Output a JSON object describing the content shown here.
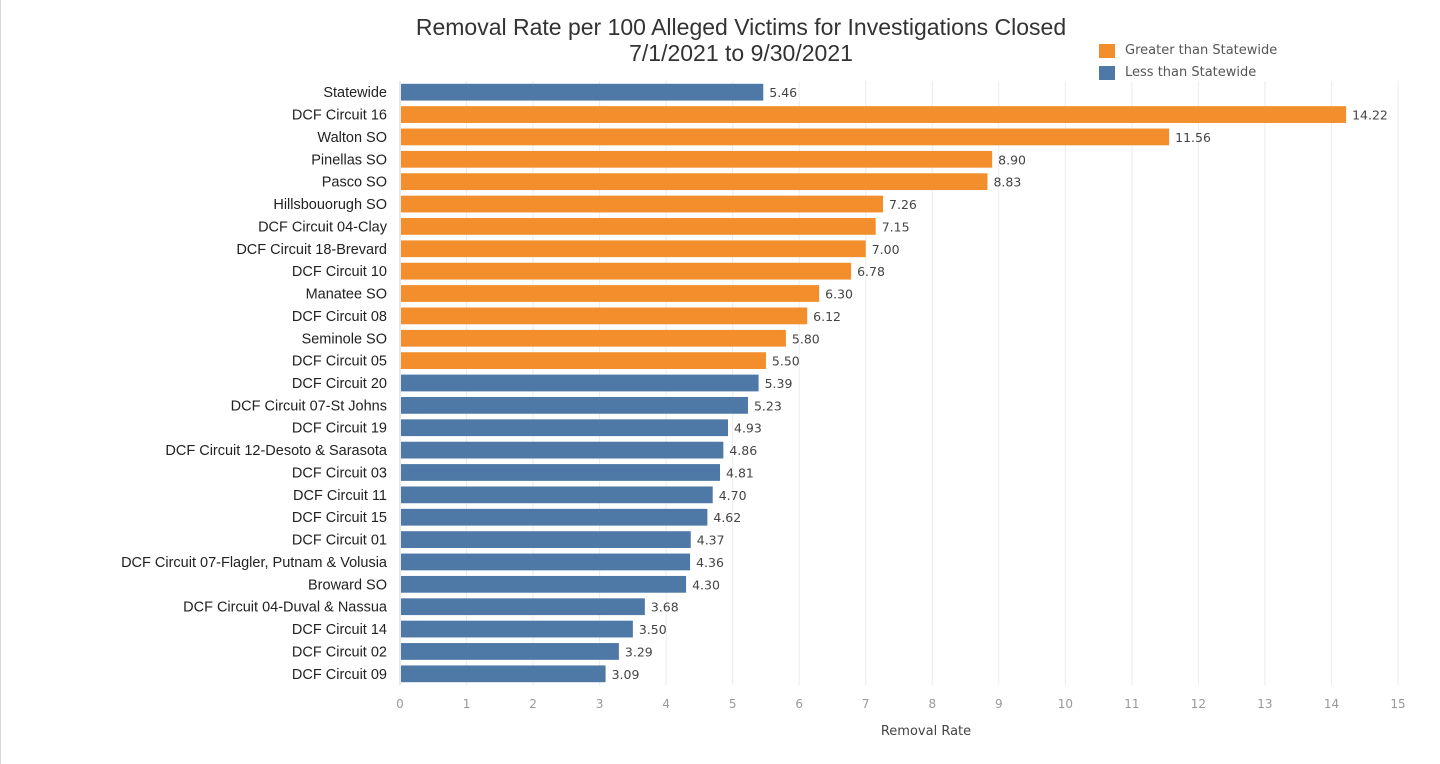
{
  "chart_data": {
    "type": "bar",
    "orientation": "horizontal",
    "title_line1": "Removal Rate per 100 Alleged Victims for Investigations Closed",
    "title_line2": "7/1/2021 to 9/30/2021",
    "xlabel": "Removal Rate",
    "ylabel": "",
    "xlim": [
      0,
      15
    ],
    "xticks": [
      0,
      1,
      2,
      3,
      4,
      5,
      6,
      7,
      8,
      9,
      10,
      11,
      12,
      13,
      14,
      15
    ],
    "grid": "vertical",
    "legend_position": "top-right",
    "legend": [
      {
        "label": "Greater than Statewide",
        "color": "#F28E2B"
      },
      {
        "label": "Less than Statewide",
        "color": "#4E79A7"
      }
    ],
    "categories": [
      "Statewide",
      "DCF Circuit 16",
      "Walton SO",
      "Pinellas SO",
      "Pasco SO",
      "Hillsbouorugh SO",
      "DCF Circuit 04-Clay",
      "DCF Circuit 18-Brevard",
      "DCF Circuit 10",
      "Manatee SO",
      "DCF Circuit 08",
      "Seminole SO",
      "DCF Circuit 05",
      "DCF Circuit 20",
      "DCF Circuit 07-St Johns",
      "DCF Circuit 19",
      "DCF Circuit 12-Desoto & Sarasota",
      "DCF Circuit 03",
      "DCF Circuit 11",
      "DCF Circuit 15",
      "DCF Circuit 01",
      "DCF Circuit 07-Flagler, Putnam & Volusia",
      "Broward SO",
      "DCF Circuit 04-Duval  & Nassua",
      "DCF Circuit 14",
      "DCF Circuit 02",
      "DCF Circuit 09"
    ],
    "values": [
      5.46,
      14.22,
      11.56,
      8.9,
      8.83,
      7.26,
      7.15,
      7.0,
      6.78,
      6.3,
      6.12,
      5.8,
      5.5,
      5.39,
      5.23,
      4.93,
      4.86,
      4.81,
      4.7,
      4.62,
      4.37,
      4.36,
      4.3,
      3.68,
      3.5,
      3.29,
      3.09
    ],
    "value_labels": [
      "5.46",
      "14.22",
      "11.56",
      "8.90",
      "8.83",
      "7.26",
      "7.15",
      "7.00",
      "6.78",
      "6.30",
      "6.12",
      "5.80",
      "5.50",
      "5.39",
      "5.23",
      "4.93",
      "4.86",
      "4.81",
      "4.70",
      "4.62",
      "4.37",
      "4.36",
      "4.30",
      "3.68",
      "3.50",
      "3.29",
      "3.09"
    ],
    "groups": [
      "less",
      "greater",
      "greater",
      "greater",
      "greater",
      "greater",
      "greater",
      "greater",
      "greater",
      "greater",
      "greater",
      "greater",
      "greater",
      "less",
      "less",
      "less",
      "less",
      "less",
      "less",
      "less",
      "less",
      "less",
      "less",
      "less",
      "less",
      "less",
      "less"
    ],
    "colors": {
      "greater": "#F28E2B",
      "less": "#4E79A7",
      "grid": "#ececec",
      "axis": "#d0d0d0"
    }
  }
}
